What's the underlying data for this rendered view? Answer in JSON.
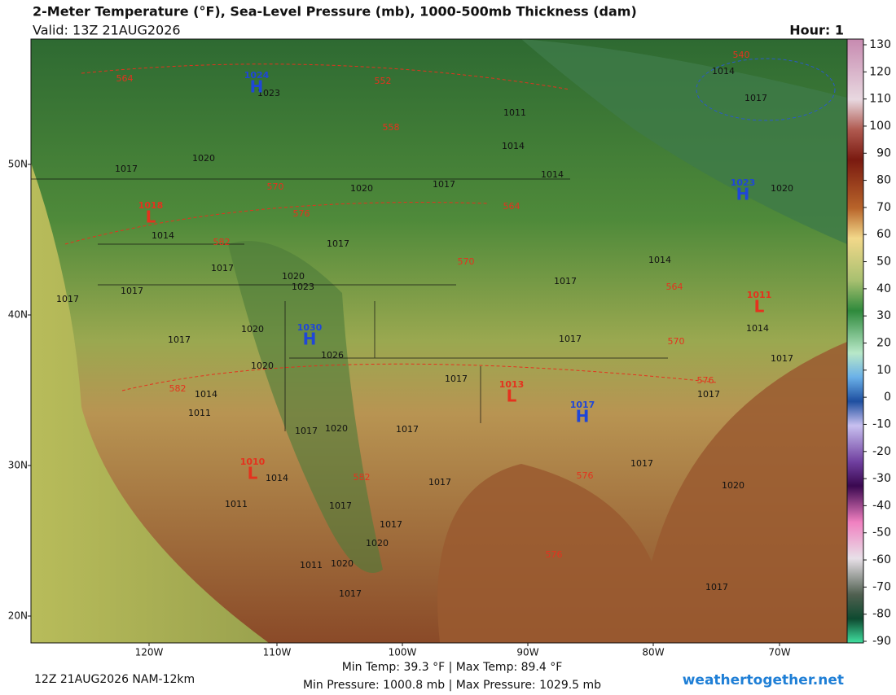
{
  "header": {
    "title": "2-Meter Temperature (°F), Sea-Level Pressure (mb), 1000-500mb Thickness (dam)",
    "valid": "Valid: 13Z 21AUG2026",
    "hour": "Hour: 1"
  },
  "map": {
    "latitude_labels": [
      "50N",
      "40N",
      "30N",
      "20N"
    ],
    "longitude_labels": [
      "120W",
      "110W",
      "100W",
      "90W",
      "80W",
      "70W"
    ],
    "pressure_centers": [
      {
        "symbol": "H",
        "value": 1024
      },
      {
        "symbol": "L",
        "value": 1018
      },
      {
        "symbol": "H",
        "value": 1030
      },
      {
        "symbol": "H",
        "value": 1023
      },
      {
        "symbol": "L",
        "value": 1011
      },
      {
        "symbol": "L",
        "value": 1013
      },
      {
        "symbol": "H",
        "value": 1017
      },
      {
        "symbol": "L",
        "value": 1010
      }
    ],
    "thickness_labels": [
      564,
      552,
      558,
      570,
      576,
      582,
      570,
      564,
      564,
      570,
      576,
      582,
      582,
      576,
      576,
      540
    ],
    "isobar_labels": [
      1023,
      1011,
      1014,
      1014,
      1017,
      1020,
      1020,
      1017,
      1014,
      1017,
      1017,
      1017,
      1020,
      1023,
      1017,
      1017,
      1020,
      1026,
      1020,
      1014,
      1011,
      1017,
      1020,
      1017,
      1017,
      1017,
      1017,
      1017,
      1017,
      1014,
      1011,
      1017,
      1020,
      1017,
      1011,
      1020,
      1017,
      1020,
      1017,
      1014,
      1017,
      1014,
      1017,
      1020,
      1017,
      1014
    ]
  },
  "colorbar": {
    "ticks": [
      130,
      120,
      110,
      100,
      90,
      80,
      70,
      60,
      50,
      40,
      30,
      20,
      10,
      0,
      -10,
      -20,
      -30,
      -40,
      -50,
      -60,
      -70,
      -80,
      -90
    ]
  },
  "footer": {
    "model": "12Z 21AUG2026 NAM-12km",
    "temps": "Min Temp:  39.3 °F | Max Temp:  89.4 °F",
    "pressures": "Min Pressure: 1000.8 mb | Max Pressure: 1029.5 mb",
    "site": "weathertogether.net"
  }
}
